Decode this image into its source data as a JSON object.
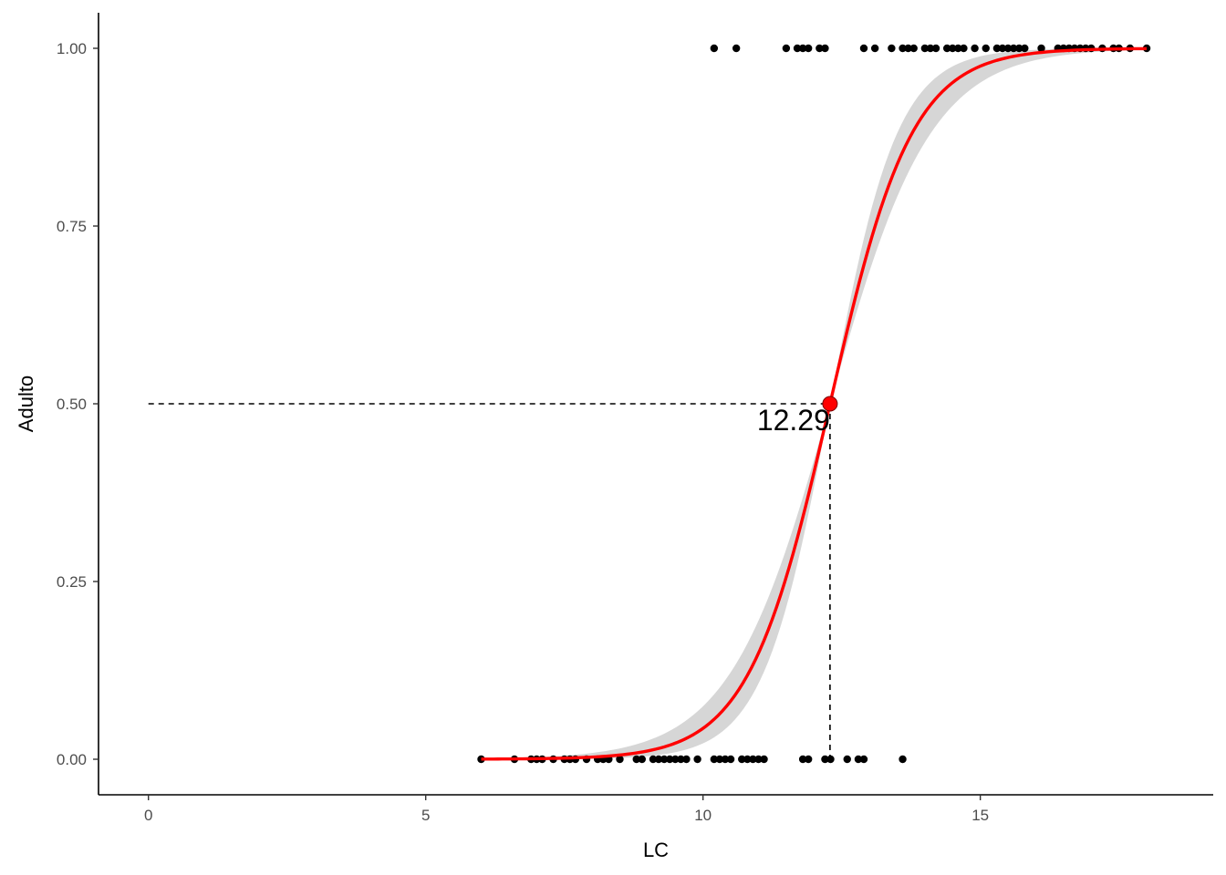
{
  "chart_data": {
    "type": "scatter",
    "title": "",
    "xlabel": "LC",
    "ylabel": "Adulto",
    "xlim": [
      -0.9,
      19.2
    ],
    "ylim": [
      -0.05,
      1.05
    ],
    "x_ticks": [
      0,
      5,
      10,
      15
    ],
    "x_tick_labels": [
      "0",
      "5",
      "10",
      "15"
    ],
    "y_ticks": [
      0,
      0.25,
      0.5,
      0.75,
      1.0
    ],
    "y_tick_labels": [
      "0.00",
      "0.25",
      "0.50",
      "0.75",
      "1.00"
    ],
    "grid": false,
    "legend": "none",
    "colors": {
      "fit_line": "#ff0000",
      "ribbon": "#d6d6d6",
      "points": "#000000",
      "reference_lines": "#000000"
    },
    "model": {
      "type": "logistic",
      "midpoint": 12.29,
      "slope": 1.35,
      "lower_slope": 1.1,
      "upper_slope": 1.65,
      "x_range": [
        6.0,
        18.0
      ]
    },
    "points_y0": [
      6.0,
      6.6,
      6.9,
      7.0,
      7.1,
      7.3,
      7.5,
      7.6,
      7.7,
      7.9,
      8.1,
      8.2,
      8.3,
      8.5,
      8.8,
      8.9,
      9.1,
      9.2,
      9.3,
      9.4,
      9.5,
      9.6,
      9.7,
      9.9,
      10.2,
      10.3,
      10.4,
      10.5,
      10.7,
      10.8,
      10.9,
      11.0,
      11.1,
      11.8,
      11.9,
      12.2,
      12.3,
      12.6,
      12.8,
      12.9,
      13.6
    ],
    "points_y1": [
      10.2,
      10.6,
      11.5,
      11.7,
      11.8,
      11.9,
      12.1,
      12.2,
      12.9,
      13.1,
      13.4,
      13.6,
      13.7,
      13.8,
      14.0,
      14.1,
      14.2,
      14.4,
      14.5,
      14.6,
      14.7,
      14.9,
      15.1,
      15.3,
      15.4,
      15.5,
      15.6,
      15.7,
      15.8,
      16.1,
      16.4,
      16.5,
      16.6,
      16.7,
      16.8,
      16.9,
      17.0,
      17.2,
      17.4,
      17.5,
      17.7,
      18.0
    ],
    "threshold": {
      "x": 12.29,
      "y": 0.5
    },
    "annotations": [
      {
        "text": "12.29",
        "x": 12.29,
        "y": 0.5
      }
    ]
  }
}
